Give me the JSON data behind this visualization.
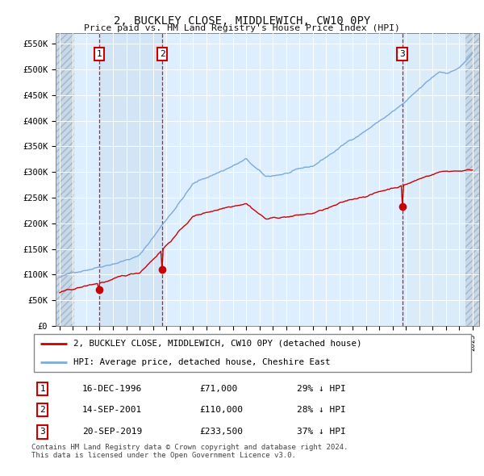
{
  "title": "2, BUCKLEY CLOSE, MIDDLEWICH, CW10 0PY",
  "subtitle": "Price paid vs. HM Land Registry's House Price Index (HPI)",
  "sale_prices": [
    71000,
    110000,
    233500
  ],
  "sale_labels": [
    "1",
    "2",
    "3"
  ],
  "sale_date_nums": [
    1996.958,
    2001.708,
    2019.722
  ],
  "legend_sale": "2, BUCKLEY CLOSE, MIDDLEWICH, CW10 0PY (detached house)",
  "legend_hpi": "HPI: Average price, detached house, Cheshire East",
  "table_rows": [
    [
      "1",
      "16-DEC-1996",
      "£71,000",
      "29% ↓ HPI"
    ],
    [
      "2",
      "14-SEP-2001",
      "£110,000",
      "28% ↓ HPI"
    ],
    [
      "3",
      "20-SEP-2019",
      "£233,500",
      "37% ↓ HPI"
    ]
  ],
  "footer": "Contains HM Land Registry data © Crown copyright and database right 2024.\nThis data is licensed under the Open Government Licence v3.0.",
  "ylim": [
    0,
    570000
  ],
  "yticks": [
    0,
    50000,
    100000,
    150000,
    200000,
    250000,
    300000,
    350000,
    400000,
    450000,
    500000,
    550000
  ],
  "ytick_labels": [
    "£0",
    "£50K",
    "£100K",
    "£150K",
    "£200K",
    "£250K",
    "£300K",
    "£350K",
    "£400K",
    "£450K",
    "£500K",
    "£550K"
  ],
  "xlim_start": 1993.7,
  "xlim_end": 2025.5,
  "sale_color": "#cc0000",
  "hpi_color": "#7aabdb",
  "vline_color": "#cc0000",
  "bg_color": "#ddeeff",
  "shade_color": "#ddeeff",
  "grid_color": "#ffffff",
  "hatch_bg": "#c8d8e8"
}
